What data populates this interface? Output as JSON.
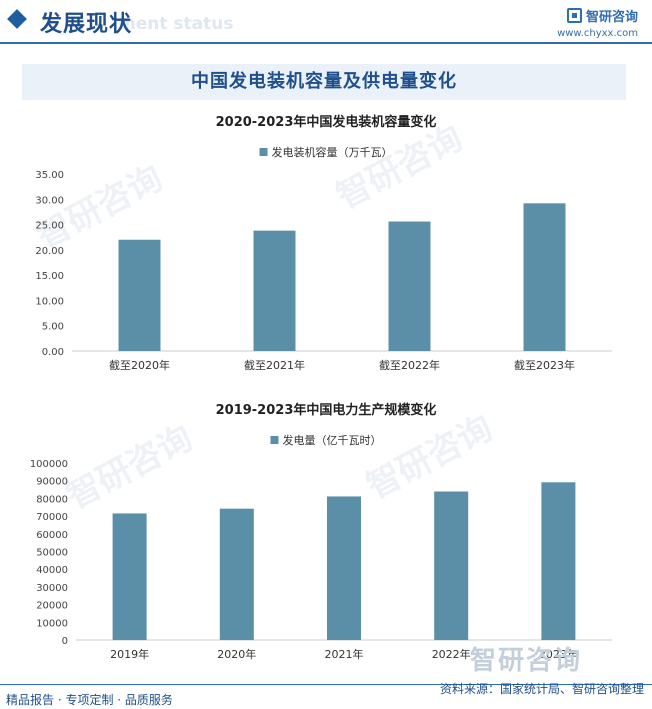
{
  "header": {
    "title": "发展现状",
    "ghost_text": "ment status",
    "logo_name": "智研咨询",
    "logo_url": "www.chyxx.com"
  },
  "banner": {
    "title": "中国发电装机容量及供电量变化"
  },
  "watermark": {
    "text": "智研咨询"
  },
  "footer": {
    "left": "精品报告 · 专项定制 · 品质服务",
    "right": "资料来源：国家统计局、智研咨询整理",
    "brand": "智研咨询"
  },
  "colors": {
    "bar": "#5b8fa8",
    "accent": "#1f4f8c",
    "axis": "#cccccc"
  },
  "chart_data": [
    {
      "type": "bar",
      "title": "2020-2023年中国发电装机容量变化",
      "categories": [
        "截至2020年",
        "截至2021年",
        "截至2022年",
        "截至2023年"
      ],
      "series": [
        {
          "name": "发电装机容量（万千瓦）",
          "values": [
            22.0,
            23.8,
            25.6,
            29.2
          ]
        }
      ],
      "ylim": [
        0,
        35
      ],
      "yticks": [
        "0.00",
        "5.00",
        "10.00",
        "15.00",
        "20.00",
        "25.00",
        "30.00",
        "35.00"
      ],
      "legend": "top-center",
      "grid": false
    },
    {
      "type": "bar",
      "title": "2019-2023年中国电力生产规模变化",
      "categories": [
        "2019年",
        "2020年",
        "2021年",
        "2022年",
        "2023年"
      ],
      "series": [
        {
          "name": "发电量（亿千瓦时）",
          "values": [
            71500,
            74200,
            81100,
            83900,
            89100
          ]
        }
      ],
      "ylim": [
        0,
        100000
      ],
      "yticks": [
        "0",
        "10000",
        "20000",
        "30000",
        "40000",
        "50000",
        "60000",
        "70000",
        "80000",
        "90000",
        "100000"
      ],
      "legend": "top-center",
      "grid": false
    }
  ]
}
